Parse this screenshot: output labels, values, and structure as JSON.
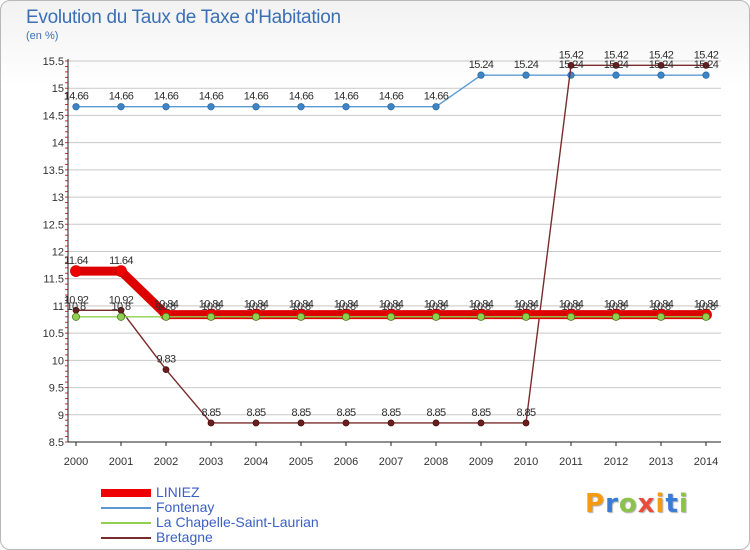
{
  "title": "Evolution du Taux de Taxe d'Habitation",
  "unit": "(en %)",
  "logo_text": "Proxiti",
  "colors": {
    "title": "#3b6fb6",
    "legend_text": "#3b5fc4",
    "grid": "#c8c8c8",
    "axis": "#222222"
  },
  "chart_data": {
    "type": "line",
    "title": "Evolution du Taux de Taxe d'Habitation",
    "ylabel": "(en %)",
    "xlabel": "",
    "x": [
      "2000",
      "2001",
      "2002",
      "2003",
      "2004",
      "2005",
      "2006",
      "2007",
      "2008",
      "2009",
      "2010",
      "2011",
      "2012",
      "2013",
      "2014"
    ],
    "ylim": [
      8.5,
      15.5
    ],
    "yticks": [
      8.5,
      9,
      9.5,
      10,
      10.5,
      11,
      11.5,
      12,
      12.5,
      13,
      13.5,
      14,
      14.5,
      15,
      15.5
    ],
    "ytick_labels": [
      "8.5",
      "9",
      "9.5",
      "10",
      "10.5",
      "11",
      "11.5",
      "12",
      "12.5",
      "13",
      "13.5",
      "14",
      "14.5",
      "15",
      "15.5"
    ],
    "grid": "horizontal",
    "legend_position": "bottom-left",
    "series": [
      {
        "name": "LINIEZ",
        "color": "#ee0000",
        "values": [
          11.64,
          11.64,
          10.84,
          10.84,
          10.84,
          10.84,
          10.84,
          10.84,
          10.84,
          10.84,
          10.84,
          10.84,
          10.84,
          10.84,
          10.84
        ],
        "labels": [
          "11.64",
          "11.64",
          "10.84",
          "10.84",
          "10.84",
          "10.84",
          "10.84",
          "10.84",
          "10.84",
          "10.84",
          "10.84",
          "10.84",
          "10.84",
          "10.84",
          "10.84"
        ]
      },
      {
        "name": "Fontenay",
        "color": "#5b9bd5",
        "values": [
          14.66,
          14.66,
          14.66,
          14.66,
          14.66,
          14.66,
          14.66,
          14.66,
          14.66,
          15.24,
          15.24,
          15.24,
          15.24,
          15.24,
          15.24
        ],
        "labels": [
          "14.66",
          "14.66",
          "14.66",
          "14.66",
          "14.66",
          "14.66",
          "14.66",
          "14.66",
          "14.66",
          "15.24",
          "15.24",
          "15.24",
          "15.24",
          "15.24",
          "15.24"
        ]
      },
      {
        "name": "La Chapelle-Saint-Laurian",
        "color": "#8fd14f",
        "values": [
          10.8,
          10.8,
          10.8,
          10.8,
          10.8,
          10.8,
          10.8,
          10.8,
          10.8,
          10.8,
          10.8,
          10.8,
          10.8,
          10.8,
          10.8
        ],
        "labels": [
          "10.8",
          "10.8",
          "10.8",
          "10.8",
          "10.8",
          "10.8",
          "10.8",
          "10.8",
          "10.8",
          "10.8",
          "10.8",
          "10.8",
          "10.8",
          "10.8",
          "10.8"
        ]
      },
      {
        "name": "Bretagne",
        "color": "#7a2c2c",
        "values": [
          10.92,
          10.92,
          9.83,
          8.85,
          8.85,
          8.85,
          8.85,
          8.85,
          8.85,
          8.85,
          8.85,
          15.42,
          15.42,
          15.42,
          15.42
        ],
        "labels": [
          "10.92",
          "10.92",
          "9.83",
          "8.85",
          "8.85",
          "8.85",
          "8.85",
          "8.85",
          "8.85",
          "8.85",
          "8.85",
          "15.42",
          "15.42",
          "15.42",
          "15.42"
        ]
      }
    ]
  }
}
